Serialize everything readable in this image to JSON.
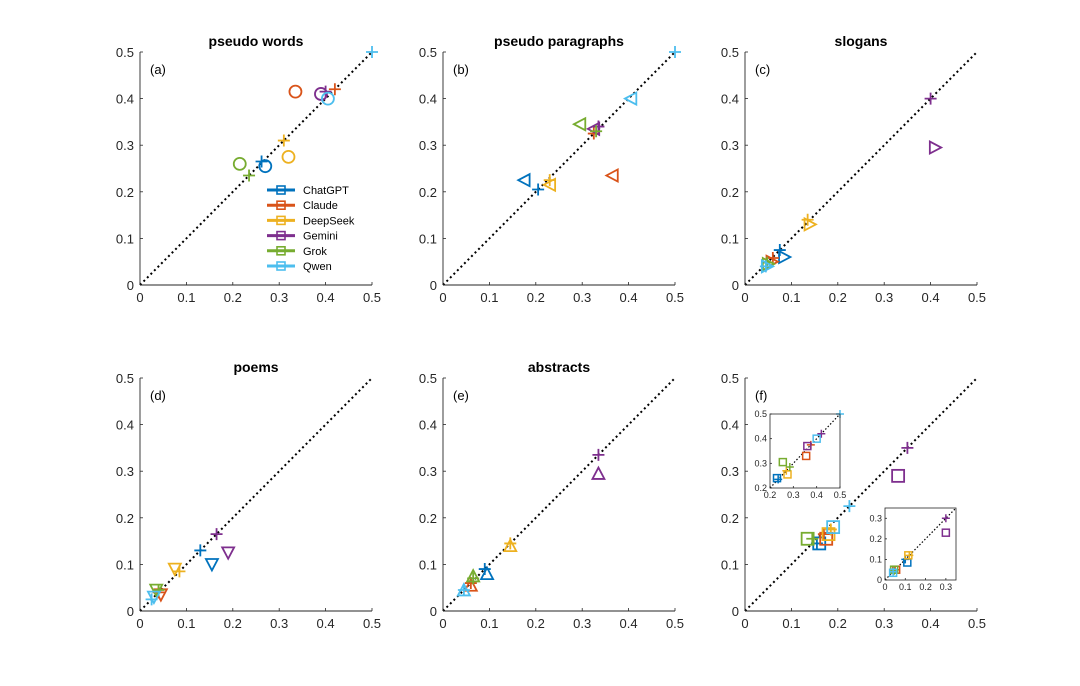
{
  "colors": {
    "ChatGPT": "#0072BD",
    "Claude": "#D95319",
    "DeepSeek": "#EDB120",
    "Gemini": "#7E2F8E",
    "Grok": "#77AC30",
    "Qwen": "#4DBEEE"
  },
  "legend": [
    "ChatGPT",
    "Claude",
    "DeepSeek",
    "Gemini",
    "Grok",
    "Qwen"
  ],
  "chart_data": [
    {
      "type": "scatter",
      "panel": "(a)",
      "title": "pseudo words",
      "xlim": [
        0,
        0.5
      ],
      "ylim": [
        0,
        0.5
      ],
      "xticks": [
        "0",
        "0.1",
        "0.2",
        "0.3",
        "0.4",
        "0.5"
      ],
      "yticks": [
        "0",
        "0.1",
        "0.2",
        "0.3",
        "0.4",
        "0.5"
      ],
      "marker": "circle",
      "diagonal": true,
      "legend_position": "inside-lower-right",
      "series": [
        {
          "name": "ChatGPT",
          "plus": [
            0.262,
            0.265
          ],
          "marker": [
            0.27,
            0.255
          ]
        },
        {
          "name": "Claude",
          "plus": [
            0.42,
            0.42
          ],
          "marker": [
            0.335,
            0.415
          ]
        },
        {
          "name": "DeepSeek",
          "plus": [
            0.31,
            0.31
          ],
          "marker": [
            0.32,
            0.275
          ]
        },
        {
          "name": "Gemini",
          "plus": [
            0.4,
            0.415
          ],
          "marker": [
            0.39,
            0.41
          ]
        },
        {
          "name": "Grok",
          "plus": [
            0.235,
            0.235
          ],
          "marker": [
            0.215,
            0.26
          ]
        },
        {
          "name": "Qwen",
          "plus": [
            0.5,
            0.5
          ],
          "marker": [
            0.405,
            0.4
          ]
        }
      ]
    },
    {
      "type": "scatter",
      "panel": "(b)",
      "title": "pseudo paragraphs",
      "xlim": [
        0,
        0.5
      ],
      "ylim": [
        0,
        0.5
      ],
      "xticks": [
        "0",
        "0.1",
        "0.2",
        "0.3",
        "0.4",
        "0.5"
      ],
      "yticks": [
        "0",
        "0.1",
        "0.2",
        "0.3",
        "0.4",
        "0.5"
      ],
      "marker": "triangle-left",
      "diagonal": true,
      "series": [
        {
          "name": "ChatGPT",
          "plus": [
            0.205,
            0.205
          ],
          "marker": [
            0.175,
            0.225
          ]
        },
        {
          "name": "Claude",
          "plus": [
            0.325,
            0.325
          ],
          "marker": [
            0.365,
            0.235
          ]
        },
        {
          "name": "DeepSeek",
          "plus": [
            0.23,
            0.225
          ],
          "marker": [
            0.23,
            0.215
          ]
        },
        {
          "name": "Gemini",
          "plus": [
            0.335,
            0.34
          ],
          "marker": [
            0.325,
            0.335
          ]
        },
        {
          "name": "Grok",
          "plus": [
            0.33,
            0.33
          ],
          "marker": [
            0.295,
            0.345
          ]
        },
        {
          "name": "Qwen",
          "plus": [
            0.5,
            0.5
          ],
          "marker": [
            0.405,
            0.4
          ]
        }
      ]
    },
    {
      "type": "scatter",
      "panel": "(c)",
      "title": "slogans",
      "xlim": [
        0,
        0.5
      ],
      "ylim": [
        0,
        0.5
      ],
      "xticks": [
        "0",
        "0.1",
        "0.2",
        "0.3",
        "0.4",
        "0.5"
      ],
      "yticks": [
        "0",
        "0.1",
        "0.2",
        "0.3",
        "0.4",
        "0.5"
      ],
      "marker": "triangle-right",
      "diagonal": true,
      "series": [
        {
          "name": "ChatGPT",
          "plus": [
            0.075,
            0.075
          ],
          "marker": [
            0.085,
            0.06
          ]
        },
        {
          "name": "Claude",
          "plus": [
            0.06,
            0.058
          ],
          "marker": [
            0.058,
            0.05
          ]
        },
        {
          "name": "DeepSeek",
          "plus": [
            0.135,
            0.14
          ],
          "marker": [
            0.14,
            0.13
          ]
        },
        {
          "name": "Gemini",
          "plus": [
            0.4,
            0.4
          ],
          "marker": [
            0.41,
            0.295
          ]
        },
        {
          "name": "Grok",
          "plus": [
            0.048,
            0.048
          ],
          "marker": [
            0.05,
            0.045
          ]
        },
        {
          "name": "Qwen",
          "plus": [
            0.045,
            0.04
          ],
          "marker": [
            0.048,
            0.04
          ]
        }
      ]
    },
    {
      "type": "scatter",
      "panel": "(d)",
      "title": "poems",
      "xlim": [
        0,
        0.5
      ],
      "ylim": [
        0,
        0.5
      ],
      "xticks": [
        "0",
        "0.1",
        "0.2",
        "0.3",
        "0.4",
        "0.5"
      ],
      "yticks": [
        "0",
        "0.1",
        "0.2",
        "0.3",
        "0.4",
        "0.5"
      ],
      "marker": "triangle-down",
      "diagonal": true,
      "series": [
        {
          "name": "ChatGPT",
          "plus": [
            0.13,
            0.13
          ],
          "marker": [
            0.155,
            0.1
          ]
        },
        {
          "name": "Claude",
          "plus": [
            0.04,
            0.04
          ],
          "marker": [
            0.045,
            0.035
          ]
        },
        {
          "name": "DeepSeek",
          "plus": [
            0.085,
            0.085
          ],
          "marker": [
            0.075,
            0.09
          ]
        },
        {
          "name": "Gemini",
          "plus": [
            0.165,
            0.165
          ],
          "marker": [
            0.19,
            0.125
          ]
        },
        {
          "name": "Grok",
          "plus": [
            0.04,
            0.045
          ],
          "marker": [
            0.035,
            0.045
          ]
        },
        {
          "name": "Qwen",
          "plus": [
            0.025,
            0.025
          ],
          "marker": [
            0.03,
            0.03
          ]
        }
      ]
    },
    {
      "type": "scatter",
      "panel": "(e)",
      "title": "abstracts",
      "xlim": [
        0,
        0.5
      ],
      "ylim": [
        0,
        0.5
      ],
      "xticks": [
        "0",
        "0.1",
        "0.2",
        "0.3",
        "0.4",
        "0.5"
      ],
      "yticks": [
        "0",
        "0.1",
        "0.2",
        "0.3",
        "0.4",
        "0.5"
      ],
      "marker": "triangle-up",
      "diagonal": true,
      "series": [
        {
          "name": "ChatGPT",
          "plus": [
            0.09,
            0.09
          ],
          "marker": [
            0.095,
            0.08
          ]
        },
        {
          "name": "Claude",
          "plus": [
            0.06,
            0.06
          ],
          "marker": [
            0.06,
            0.055
          ]
        },
        {
          "name": "DeepSeek",
          "plus": [
            0.145,
            0.145
          ],
          "marker": [
            0.145,
            0.14
          ]
        },
        {
          "name": "Gemini",
          "plus": [
            0.335,
            0.335
          ],
          "marker": [
            0.335,
            0.295
          ]
        },
        {
          "name": "Grok",
          "plus": [
            0.065,
            0.07
          ],
          "marker": [
            0.065,
            0.075
          ]
        },
        {
          "name": "Qwen",
          "plus": [
            0.045,
            0.045
          ],
          "marker": [
            0.045,
            0.045
          ]
        }
      ]
    },
    {
      "type": "scatter",
      "panel": "(f)",
      "xlim": [
        0,
        0.5
      ],
      "ylim": [
        0,
        0.5
      ],
      "xticks": [
        "0",
        "0.1",
        "0.2",
        "0.3",
        "0.4",
        "0.5"
      ],
      "yticks": [
        "0",
        "0.1",
        "0.2",
        "0.3",
        "0.4",
        "0.5"
      ],
      "marker": "square",
      "diagonal": true,
      "series": [
        {
          "name": "ChatGPT",
          "plus": [
            0.155,
            0.145
          ],
          "marker": [
            0.16,
            0.145
          ]
        },
        {
          "name": "Claude",
          "plus": [
            0.17,
            0.165
          ],
          "marker": [
            0.175,
            0.155
          ]
        },
        {
          "name": "DeepSeek",
          "plus": [
            0.185,
            0.175
          ],
          "marker": [
            0.18,
            0.165
          ]
        },
        {
          "name": "Gemini",
          "plus": [
            0.35,
            0.35
          ],
          "marker": [
            0.33,
            0.29
          ]
        },
        {
          "name": "Grok",
          "plus": [
            0.145,
            0.155
          ],
          "marker": [
            0.135,
            0.155
          ]
        },
        {
          "name": "Qwen",
          "plus": [
            0.225,
            0.225
          ],
          "marker": [
            0.19,
            0.18
          ]
        }
      ],
      "insets": [
        {
          "xlim": [
            0.2,
            0.5
          ],
          "ylim": [
            0.2,
            0.5
          ],
          "xticks": [
            "0.2",
            "0.3",
            "0.4",
            "0.5"
          ],
          "yticks": [
            "0.2",
            "0.3",
            "0.4",
            "0.5"
          ],
          "series": [
            {
              "name": "ChatGPT",
              "plus": [
                0.235,
                0.235
              ],
              "marker": [
                0.23,
                0.24
              ]
            },
            {
              "name": "Claude",
              "plus": [
                0.375,
                0.375
              ],
              "marker": [
                0.355,
                0.33
              ]
            },
            {
              "name": "DeepSeek",
              "plus": [
                0.27,
                0.27
              ],
              "marker": [
                0.275,
                0.255
              ]
            },
            {
              "name": "Gemini",
              "plus": [
                0.42,
                0.42
              ],
              "marker": [
                0.36,
                0.37
              ]
            },
            {
              "name": "Grok",
              "plus": [
                0.285,
                0.285
              ],
              "marker": [
                0.255,
                0.305
              ]
            },
            {
              "name": "Qwen",
              "plus": [
                0.5,
                0.5
              ],
              "marker": [
                0.4,
                0.4
              ]
            }
          ]
        },
        {
          "xlim": [
            0,
            0.35
          ],
          "ylim": [
            0,
            0.35
          ],
          "xticks": [
            "0",
            "0.1",
            "0.2",
            "0.3"
          ],
          "yticks": [
            "0",
            "0.1",
            "0.2",
            "0.3"
          ],
          "series": [
            {
              "name": "ChatGPT",
              "plus": [
                0.1,
                0.1
              ],
              "marker": [
                0.11,
                0.085
              ]
            },
            {
              "name": "Claude",
              "plus": [
                0.05,
                0.05
              ],
              "marker": [
                0.055,
                0.05
              ]
            },
            {
              "name": "DeepSeek",
              "plus": [
                0.12,
                0.12
              ],
              "marker": [
                0.115,
                0.12
              ]
            },
            {
              "name": "Gemini",
              "plus": [
                0.3,
                0.3
              ],
              "marker": [
                0.3,
                0.23
              ]
            },
            {
              "name": "Grok",
              "plus": [
                0.045,
                0.045
              ],
              "marker": [
                0.045,
                0.05
              ]
            },
            {
              "name": "Qwen",
              "plus": [
                0.04,
                0.04
              ],
              "marker": [
                0.04,
                0.035
              ]
            }
          ]
        }
      ]
    }
  ]
}
